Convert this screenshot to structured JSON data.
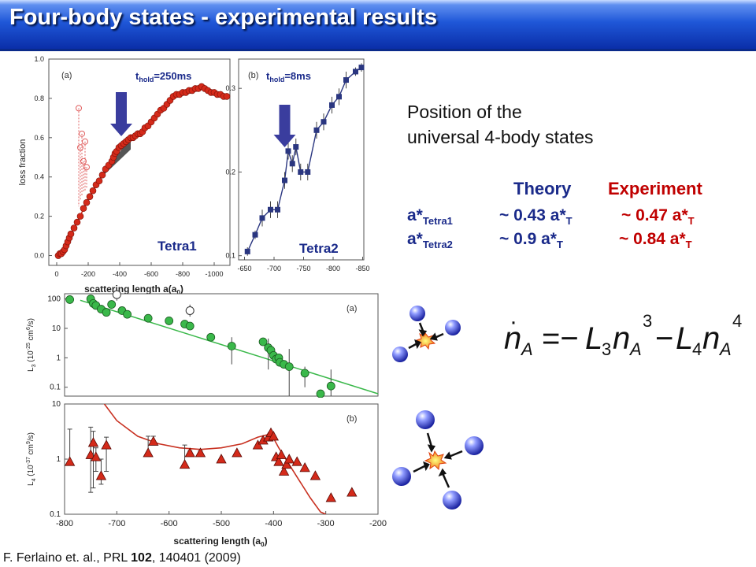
{
  "slide": {
    "title": "Four-body states - experimental results",
    "position_line1": "Position of the",
    "position_line2": "universal 4-body states",
    "col_theory": "Theory",
    "col_experiment": "Experiment",
    "row1_label_main": "a*",
    "row1_label_sub": "Tetra1",
    "row2_label_main": "a*",
    "row2_label_sub": "Tetra2",
    "row1_theory_main": "~ 0.43 a*",
    "row1_theory_sub": "T",
    "row1_exp_main": "~ 0.47 a*",
    "row1_exp_sub": "T",
    "row2_theory_main": "~ 0.9 a*",
    "row2_theory_sub": "T",
    "row2_exp_main": "~ 0.84 a*",
    "row2_exp_sub": "T",
    "citation_pre": "F. Ferlaino et. al., PRL ",
    "citation_vol": "102",
    "citation_post": ", 140401 (2009)",
    "equation": "ṅA = −L3 nA^3 − L4 nA^4",
    "colors": {
      "theory": "#1a2a8a",
      "experiment": "#c00000",
      "title_bg": "#1f57d8"
    }
  },
  "chart_data": [
    {
      "id": "a",
      "type": "line",
      "panel_label": "(a)",
      "annotation_main": "t",
      "annotation_sub": "hold",
      "annotation_val": "=250ms",
      "state_label": "Tetra1",
      "xlabel_main": "scattering length a(a",
      "xlabel_sub": "0",
      "xlabel_close": ")",
      "ylabel": "loss fraction",
      "x_ticks": [
        0,
        -200,
        -400,
        -600,
        -800,
        -1000
      ],
      "x_tick_labels": [
        "0",
        "-200",
        "-400",
        "-600",
        "-800",
        "-1000"
      ],
      "y_ticks": [
        0,
        0.2,
        0.4,
        0.6,
        0.8,
        1.0
      ],
      "y_tick_labels": [
        "0.0",
        "0.2",
        "0.4",
        "0.6",
        "0.8",
        "1.0"
      ],
      "xlim": [
        50,
        -1100
      ],
      "ylim": [
        -0.05,
        1.0
      ],
      "arrow_at": -410,
      "series": [
        {
          "style": "filled",
          "color": "#d42a1a",
          "x": [
            -10,
            -20,
            -30,
            -40,
            -50,
            -60,
            -70,
            -80,
            -90,
            -110,
            -130,
            -150,
            -170,
            -190,
            -210,
            -230,
            -250,
            -270,
            -290,
            -310,
            -330,
            -350,
            -360,
            -370,
            -380,
            -395,
            -410,
            -425,
            -440,
            -455,
            -470,
            -485,
            -500,
            -515,
            -530,
            -545,
            -560,
            -580,
            -600,
            -620,
            -640,
            -660,
            -680,
            -700,
            -720,
            -740,
            -760,
            -780,
            -800,
            -820,
            -840,
            -860,
            -880,
            -900,
            -920,
            -940,
            -960,
            -980,
            -1000,
            -1020,
            -1040,
            -1060,
            -1080
          ],
          "y": [
            0.0,
            0.01,
            0.01,
            0.02,
            0.03,
            0.05,
            0.07,
            0.09,
            0.11,
            0.14,
            0.17,
            0.2,
            0.24,
            0.27,
            0.3,
            0.33,
            0.36,
            0.38,
            0.41,
            0.44,
            0.46,
            0.48,
            0.5,
            0.52,
            0.53,
            0.55,
            0.56,
            0.57,
            0.58,
            0.59,
            0.6,
            0.6,
            0.61,
            0.62,
            0.62,
            0.63,
            0.65,
            0.66,
            0.68,
            0.7,
            0.72,
            0.74,
            0.75,
            0.77,
            0.79,
            0.81,
            0.82,
            0.82,
            0.83,
            0.83,
            0.84,
            0.84,
            0.85,
            0.85,
            0.86,
            0.85,
            0.84,
            0.83,
            0.83,
            0.82,
            0.82,
            0.81,
            0.81
          ]
        },
        {
          "style": "open",
          "color": "#e06060",
          "x": [
            -140,
            -150,
            -160,
            -170,
            -180,
            -190
          ],
          "y": [
            0.75,
            0.55,
            0.62,
            0.48,
            0.58,
            0.45
          ],
          "y_low": [
            0.25,
            0.28,
            0.3,
            0.32,
            0.33,
            0.34
          ]
        }
      ]
    },
    {
      "id": "b",
      "type": "line",
      "panel_label": "(b)",
      "annotation_main": "t",
      "annotation_sub": "hold",
      "annotation_val": "=8ms",
      "state_label": "Tetra2",
      "x_ticks": [
        -650,
        -700,
        -750,
        -800,
        -850
      ],
      "x_tick_labels": [
        "-650",
        "-700",
        "-750",
        "-800",
        "-850"
      ],
      "y_ticks": [
        0.1,
        0.2,
        0.3
      ],
      "y_tick_labels": [
        "0.1",
        "0.2",
        "0.3"
      ],
      "xlim": [
        -640,
        -852
      ],
      "ylim": [
        0.095,
        0.335
      ],
      "arrow_at": -718,
      "series": [
        {
          "style": "square",
          "color": "#2a3680",
          "x": [
            -655,
            -668,
            -680,
            -694,
            -706,
            -718,
            -724,
            -731,
            -737,
            -745,
            -757,
            -772,
            -784,
            -798,
            -810,
            -822,
            -838,
            -848
          ],
          "y": [
            0.105,
            0.125,
            0.145,
            0.155,
            0.155,
            0.19,
            0.225,
            0.21,
            0.23,
            0.2,
            0.2,
            0.25,
            0.26,
            0.28,
            0.29,
            0.31,
            0.32,
            0.325
          ],
          "err": [
            0.005,
            0.005,
            0.01,
            0.01,
            0.01,
            0.01,
            0.01,
            0.01,
            0.01,
            0.01,
            0.01,
            0.01,
            0.01,
            0.01,
            0.01,
            0.01,
            0.005,
            0.005
          ]
        }
      ]
    },
    {
      "id": "c",
      "type": "scatter",
      "panel_label": "(a)",
      "ylabel_main": "L",
      "ylabel_sub": "3",
      "ylabel_units": " (10",
      "ylabel_exp": "-25",
      "ylabel_units2": " cm",
      "ylabel_exp2": "6",
      "ylabel_close": "/s)",
      "y_log": true,
      "y_ticks": [
        0.1,
        1,
        10,
        100
      ],
      "y_tick_labels": [
        "0.1",
        "1",
        "10",
        "100"
      ],
      "xlim": [
        -800,
        -200
      ],
      "ylim": [
        0.05,
        150
      ],
      "series": [
        {
          "style": "filled",
          "color": "#3ab84a",
          "x": [
            -790,
            -750,
            -745,
            -740,
            -730,
            -720,
            -710,
            -690,
            -680,
            -640,
            -600,
            -570,
            -560,
            -520,
            -480,
            -420,
            -410,
            -405,
            -400,
            -395,
            -390,
            -388,
            -380,
            -370,
            -340,
            -310,
            -290
          ],
          "y": [
            95,
            100,
            70,
            60,
            45,
            35,
            65,
            40,
            30,
            22,
            18,
            14,
            12,
            5,
            2.5,
            3.5,
            2.2,
            1.8,
            1.2,
            0.9,
            1.0,
            0.7,
            0.6,
            0.5,
            0.3,
            0.06,
            0.11
          ]
        },
        {
          "style": "open",
          "color": "#333333",
          "x": [
            -700,
            -560
          ],
          "y": [
            140,
            40
          ]
        }
      ],
      "fit_line": {
        "color": "#3ab84a",
        "x": [
          -770,
          -200
        ],
        "y": [
          90,
          0.06
        ]
      }
    },
    {
      "id": "d",
      "type": "scatter",
      "panel_label": "(b)",
      "ylabel_main": "L",
      "ylabel_sub": "4",
      "ylabel_units": " (10",
      "ylabel_exp": "-37",
      "ylabel_units2": " cm",
      "ylabel_exp2": "9",
      "ylabel_close": "/s)",
      "xlabel_main": "scattering length (a",
      "xlabel_sub": "0",
      "xlabel_close": ")",
      "y_log": true,
      "y_ticks": [
        0.1,
        1,
        10
      ],
      "y_tick_labels": [
        "0.1",
        "1",
        "10"
      ],
      "x_ticks": [
        -800,
        -700,
        -600,
        -500,
        -400,
        -300,
        -200
      ],
      "x_tick_labels": [
        "-800",
        "-700",
        "-600",
        "-500",
        "-400",
        "-300",
        "-200"
      ],
      "xlim": [
        -800,
        -200
      ],
      "ylim": [
        0.1,
        10
      ],
      "series": [
        {
          "style": "triangle",
          "color": "#d42a1a",
          "x": [
            -790,
            -750,
            -745,
            -740,
            -730,
            -720,
            -640,
            -630,
            -570,
            -560,
            -540,
            -500,
            -470,
            -430,
            -420,
            -410,
            -405,
            -400,
            -395,
            -390,
            -385,
            -380,
            -375,
            -370,
            -355,
            -340,
            -320,
            -290,
            -250
          ],
          "y": [
            0.9,
            1.2,
            2.0,
            1.1,
            0.5,
            1.8,
            1.3,
            2.1,
            0.8,
            1.3,
            1.3,
            1.0,
            1.3,
            1.8,
            2.2,
            2.5,
            3.0,
            2.6,
            1.1,
            0.9,
            1.2,
            0.6,
            0.8,
            1.0,
            0.9,
            0.7,
            0.5,
            0.2,
            0.25
          ],
          "y_hi": [
            3.5,
            3.8,
            3.2,
            1.6,
            1.0,
            2.5,
            2.6,
            2.6,
            1.8,
            1.4,
            1.4,
            1.0,
            1.3,
            1.8,
            2.2,
            2.5,
            3.0,
            2.6,
            1.1,
            0.9,
            1.2,
            0.6,
            0.8,
            1.0,
            0.9,
            0.7,
            0.5,
            0.2,
            0.25
          ],
          "y_lo": [
            0.9,
            0.25,
            0.3,
            0.6,
            0.35,
            0.6,
            1.3,
            2.1,
            0.8,
            1.3,
            1.3,
            1.0,
            1.3,
            1.8,
            2.2,
            2.5,
            3.0,
            2.6,
            1.1,
            0.9,
            1.2,
            0.6,
            0.8,
            1.0,
            0.9,
            0.7,
            0.5,
            0.2,
            0.25
          ]
        }
      ],
      "fit_curve": {
        "color": "#c83020",
        "x": [
          -730,
          -700,
          -660,
          -620,
          -580,
          -540,
          -500,
          -460,
          -430,
          -410,
          -400,
          -390,
          -370,
          -350,
          -330,
          -310,
          -300
        ],
        "y": [
          12,
          5.0,
          2.6,
          1.9,
          1.6,
          1.5,
          1.6,
          1.9,
          2.5,
          2.8,
          2.4,
          1.6,
          0.8,
          0.4,
          0.2,
          0.11,
          0.1
        ]
      }
    }
  ]
}
